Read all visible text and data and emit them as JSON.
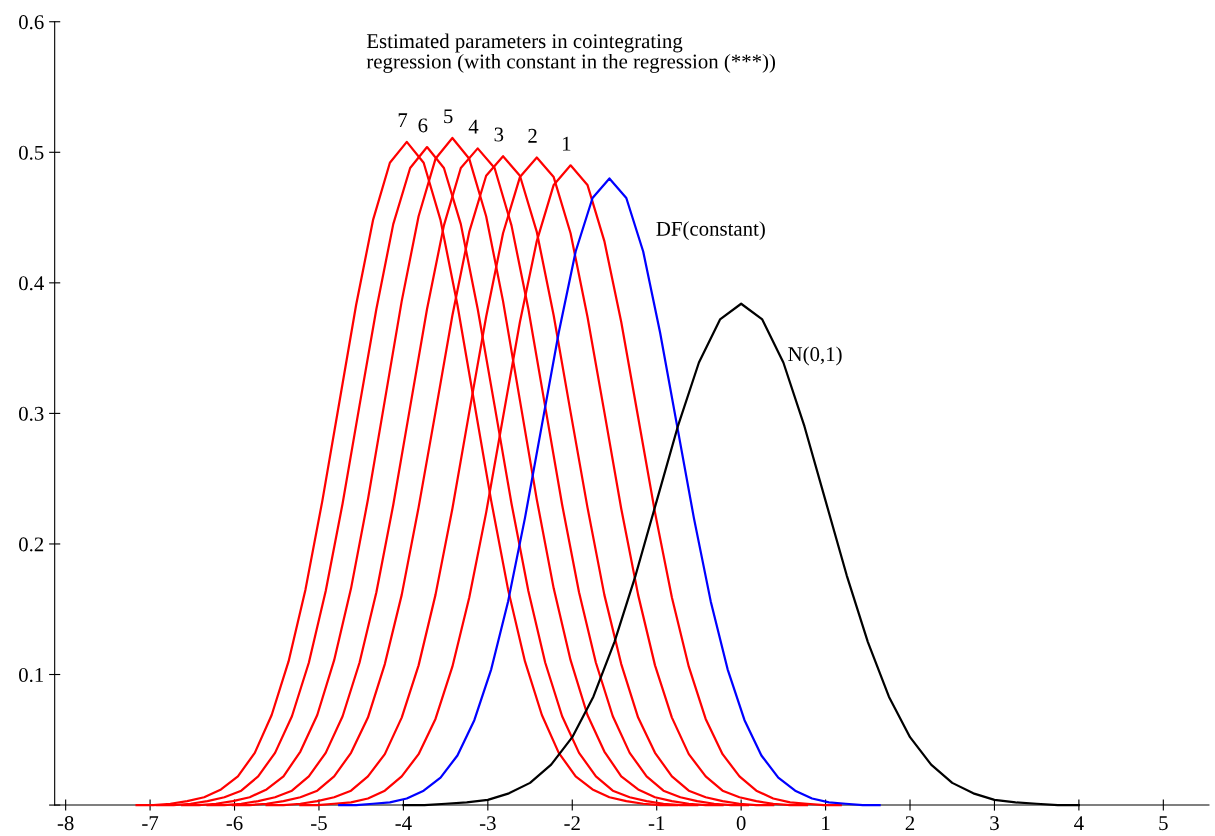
{
  "chart_data": {
    "type": "line",
    "annotations": [
      "Estimated parameters in cointegrating\nregression (with constant in the regression (***))"
    ],
    "xlim": [
      -8.13,
      5.54
    ],
    "ylim": [
      0,
      0.6
    ],
    "xticks": [
      -8,
      -7,
      -6,
      -5,
      -4,
      -3,
      -2,
      -1,
      0,
      1,
      2,
      3,
      4,
      5
    ],
    "yticks": [
      {
        "value": 0,
        "label": null
      },
      0.1,
      0.2,
      0.3,
      0.4,
      0.5,
      0.6
    ],
    "grid": false,
    "legend": false,
    "line_style": "solid",
    "marker": "none",
    "series": [
      {
        "name": "1",
        "color": "#ff0000",
        "x": [
          -5.22,
          -5.02,
          -4.82,
          -4.62,
          -4.42,
          -4.22,
          -4.02,
          -3.82,
          -3.62,
          -3.42,
          -3.22,
          -3.02,
          -2.82,
          -2.62,
          -2.42,
          -2.22,
          -2.02,
          -1.82,
          -1.62,
          -1.42,
          -1.22,
          -1.02,
          -0.82,
          -0.62,
          -0.42,
          -0.22,
          -0.02,
          0.18,
          0.38,
          0.58,
          0.78,
          0.98,
          1.18
        ],
        "values": [
          0,
          0,
          0.001,
          0.002,
          0.005,
          0.011,
          0.022,
          0.039,
          0.066,
          0.106,
          0.159,
          0.224,
          0.297,
          0.37,
          0.432,
          0.475,
          0.49,
          0.475,
          0.432,
          0.37,
          0.297,
          0.224,
          0.159,
          0.106,
          0.066,
          0.039,
          0.022,
          0.011,
          0.005,
          0.002,
          0.001,
          0,
          0
        ]
      },
      {
        "name": "2",
        "color": "#ff0000",
        "x": [
          -5.62,
          -5.42,
          -5.22,
          -5.02,
          -4.82,
          -4.62,
          -4.42,
          -4.22,
          -4.02,
          -3.82,
          -3.62,
          -3.42,
          -3.22,
          -3.02,
          -2.82,
          -2.62,
          -2.42,
          -2.22,
          -2.02,
          -1.82,
          -1.62,
          -1.42,
          -1.22,
          -1.02,
          -0.82,
          -0.62,
          -0.42,
          -0.22,
          -0.02,
          0.18,
          0.38,
          0.58,
          0.78
        ],
        "values": [
          0,
          0,
          0.001,
          0.003,
          0.006,
          0.011,
          0.022,
          0.039,
          0.067,
          0.107,
          0.161,
          0.227,
          0.301,
          0.374,
          0.438,
          0.481,
          0.496,
          0.481,
          0.438,
          0.374,
          0.301,
          0.227,
          0.161,
          0.107,
          0.067,
          0.039,
          0.022,
          0.011,
          0.006,
          0.003,
          0.001,
          0,
          0
        ]
      },
      {
        "name": "3",
        "color": "#ff0000",
        "x": [
          -6.02,
          -5.82,
          -5.62,
          -5.42,
          -5.22,
          -5.02,
          -4.82,
          -4.62,
          -4.42,
          -4.22,
          -4.02,
          -3.82,
          -3.62,
          -3.42,
          -3.22,
          -3.02,
          -2.82,
          -2.62,
          -2.42,
          -2.22,
          -2.02,
          -1.82,
          -1.62,
          -1.42,
          -1.22,
          -1.02,
          -0.82,
          -0.62,
          -0.42,
          -0.22,
          -0.02,
          0.18,
          0.38
        ],
        "values": [
          0,
          0,
          0.001,
          0.003,
          0.006,
          0.011,
          0.022,
          0.04,
          0.067,
          0.108,
          0.161,
          0.228,
          0.301,
          0.375,
          0.439,
          0.482,
          0.497,
          0.482,
          0.439,
          0.375,
          0.301,
          0.228,
          0.161,
          0.108,
          0.067,
          0.04,
          0.022,
          0.011,
          0.006,
          0.003,
          0.001,
          0,
          0
        ]
      },
      {
        "name": "4",
        "color": "#ff0000",
        "x": [
          -6.32,
          -6.12,
          -5.92,
          -5.72,
          -5.52,
          -5.32,
          -5.12,
          -4.92,
          -4.72,
          -4.52,
          -4.32,
          -4.12,
          -3.92,
          -3.72,
          -3.52,
          -3.32,
          -3.12,
          -2.92,
          -2.72,
          -2.52,
          -2.32,
          -2.12,
          -1.92,
          -1.72,
          -1.52,
          -1.32,
          -1.12,
          -0.92,
          -0.72,
          -0.52,
          -0.32,
          -0.12,
          0.08
        ],
        "values": [
          0,
          0,
          0.001,
          0.003,
          0.006,
          0.011,
          0.022,
          0.04,
          0.068,
          0.109,
          0.163,
          0.23,
          0.305,
          0.38,
          0.444,
          0.488,
          0.503,
          0.488,
          0.444,
          0.38,
          0.305,
          0.23,
          0.163,
          0.109,
          0.068,
          0.04,
          0.022,
          0.011,
          0.006,
          0.003,
          0.001,
          0,
          0
        ]
      },
      {
        "name": "5",
        "color": "#ff0000",
        "x": [
          -6.62,
          -6.42,
          -6.22,
          -6.02,
          -5.82,
          -5.62,
          -5.42,
          -5.22,
          -5.02,
          -4.82,
          -4.62,
          -4.42,
          -4.22,
          -4.02,
          -3.82,
          -3.62,
          -3.42,
          -3.22,
          -3.02,
          -2.82,
          -2.62,
          -2.42,
          -2.22,
          -2.02,
          -1.82,
          -1.62,
          -1.42,
          -1.22,
          -1.02,
          -0.82,
          -0.62,
          -0.42,
          -0.22
        ],
        "values": [
          0,
          0,
          0.001,
          0.003,
          0.006,
          0.012,
          0.022,
          0.041,
          0.069,
          0.111,
          0.166,
          0.234,
          0.31,
          0.386,
          0.451,
          0.495,
          0.511,
          0.495,
          0.451,
          0.386,
          0.31,
          0.234,
          0.166,
          0.111,
          0.069,
          0.041,
          0.022,
          0.012,
          0.006,
          0.003,
          0.001,
          0,
          0
        ]
      },
      {
        "name": "6",
        "color": "#ff0000",
        "x": [
          -6.92,
          -6.72,
          -6.52,
          -6.32,
          -6.12,
          -5.92,
          -5.72,
          -5.52,
          -5.32,
          -5.12,
          -4.92,
          -4.72,
          -4.52,
          -4.32,
          -4.12,
          -3.92,
          -3.72,
          -3.52,
          -3.32,
          -3.12,
          -2.92,
          -2.72,
          -2.52,
          -2.32,
          -2.12,
          -1.92,
          -1.72,
          -1.52,
          -1.32,
          -1.12,
          -0.92,
          -0.72,
          -0.52
        ],
        "values": [
          0,
          0,
          0.001,
          0.003,
          0.006,
          0.011,
          0.022,
          0.04,
          0.068,
          0.109,
          0.164,
          0.231,
          0.306,
          0.38,
          0.445,
          0.488,
          0.504,
          0.488,
          0.445,
          0.38,
          0.306,
          0.231,
          0.164,
          0.109,
          0.068,
          0.04,
          0.022,
          0.011,
          0.006,
          0.003,
          0.001,
          0,
          0
        ]
      },
      {
        "name": "7",
        "color": "#ff0000",
        "x": [
          -7.16,
          -6.96,
          -6.76,
          -6.56,
          -6.36,
          -6.16,
          -5.96,
          -5.76,
          -5.56,
          -5.36,
          -5.16,
          -4.96,
          -4.76,
          -4.56,
          -4.36,
          -4.16,
          -3.96,
          -3.76,
          -3.56,
          -3.36,
          -3.16,
          -2.96,
          -2.76,
          -2.56,
          -2.36,
          -2.16,
          -1.96,
          -1.76,
          -1.56,
          -1.36,
          -1.16,
          -0.96,
          -0.76
        ],
        "values": [
          0,
          0,
          0.001,
          0.003,
          0.006,
          0.012,
          0.022,
          0.04,
          0.069,
          0.11,
          0.165,
          0.233,
          0.308,
          0.383,
          0.448,
          0.492,
          0.508,
          0.492,
          0.448,
          0.383,
          0.308,
          0.233,
          0.165,
          0.11,
          0.069,
          0.04,
          0.022,
          0.012,
          0.006,
          0.003,
          0.001,
          0,
          0
        ]
      },
      {
        "name": "DF(constant)",
        "color": "#0000ff",
        "x": [
          -4.76,
          -4.56,
          -4.36,
          -4.16,
          -3.96,
          -3.76,
          -3.56,
          -3.36,
          -3.16,
          -2.96,
          -2.76,
          -2.56,
          -2.36,
          -2.16,
          -1.96,
          -1.76,
          -1.56,
          -1.36,
          -1.16,
          -0.96,
          -0.76,
          -0.56,
          -0.36,
          -0.16,
          0.04,
          0.24,
          0.44,
          0.64,
          0.84,
          1.04,
          1.24,
          1.44,
          1.64
        ],
        "values": [
          0,
          0,
          0.001,
          0.002,
          0.005,
          0.011,
          0.021,
          0.038,
          0.065,
          0.104,
          0.156,
          0.22,
          0.291,
          0.362,
          0.424,
          0.465,
          0.48,
          0.465,
          0.424,
          0.362,
          0.291,
          0.22,
          0.156,
          0.104,
          0.065,
          0.038,
          0.021,
          0.011,
          0.005,
          0.002,
          0.001,
          0,
          0
        ]
      },
      {
        "name": "N(0,1)",
        "color": "#000000",
        "x": [
          -4,
          -3.75,
          -3.5,
          -3.25,
          -3,
          -2.75,
          -2.5,
          -2.25,
          -2,
          -1.75,
          -1.5,
          -1.25,
          -1,
          -0.75,
          -0.5,
          -0.25,
          0,
          0.25,
          0.5,
          0.75,
          1,
          1.25,
          1.5,
          1.75,
          2,
          2.25,
          2.5,
          2.75,
          3,
          3.25,
          3.5,
          3.75,
          4
        ],
        "values": [
          0,
          0,
          0.001,
          0.002,
          0.004,
          0.009,
          0.017,
          0.031,
          0.052,
          0.083,
          0.125,
          0.176,
          0.233,
          0.29,
          0.339,
          0.372,
          0.384,
          0.372,
          0.339,
          0.29,
          0.233,
          0.176,
          0.125,
          0.083,
          0.052,
          0.031,
          0.017,
          0.009,
          0.004,
          0.002,
          0.001,
          0,
          0
        ]
      }
    ]
  }
}
